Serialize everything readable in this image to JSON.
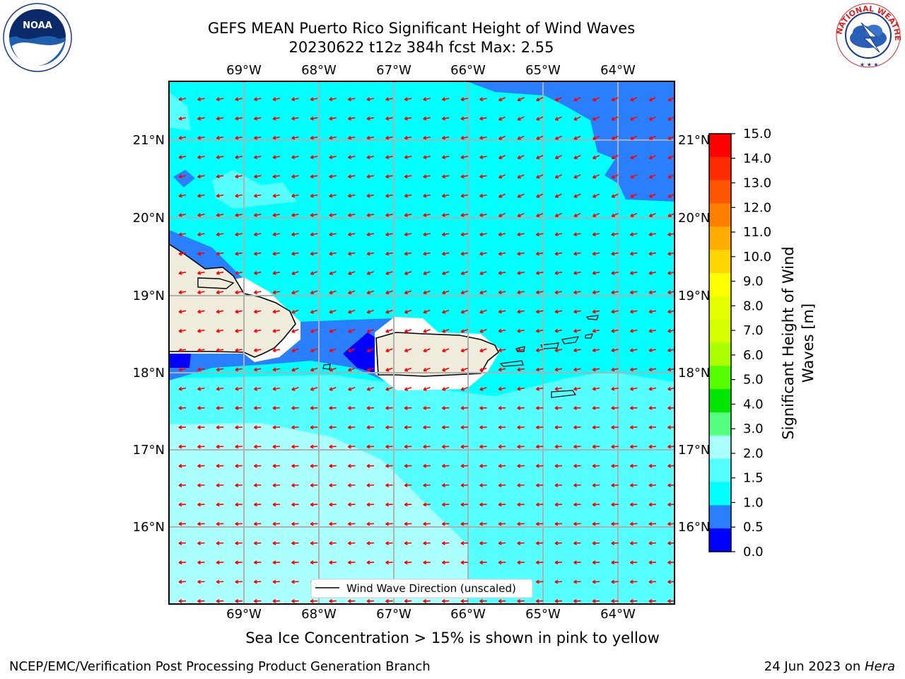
{
  "header": {
    "title_line1": "GEFS MEAN Puerto Rico Significant Height of Wind Waves",
    "title_line2": "20230622 t12z 384h fcst   Max: 2.55"
  },
  "logos": {
    "left": {
      "icon": "noaa-logo",
      "text": "NOAA",
      "ring_text": "NATIONAL OCEANIC AND ATMOSPHERIC ADMINISTRATION · U.S. DEPARTMENT OF COMMERCE"
    },
    "right": {
      "icon": "nws-logo",
      "ring_text": "NATIONAL WEATHER SERVICE"
    }
  },
  "map": {
    "lon_labels": [
      "69°W",
      "68°W",
      "67°W",
      "66°W",
      "65°W",
      "64°W"
    ],
    "lat_labels": [
      "21°N",
      "20°N",
      "19°N",
      "18°N",
      "17°N",
      "16°N"
    ],
    "legend_label": "Wind Wave Direction (unscaled)",
    "arrow_color": "#ff0000",
    "land_color": "#efecdc",
    "grid_color": "#b0b0b0"
  },
  "colorbar": {
    "label": "Significant Height of Wind Waves [m]",
    "label_line1": "Significant Height of Wind",
    "label_line2": "Waves [m]",
    "ticks": [
      "15.0",
      "14.0",
      "13.0",
      "12.0",
      "11.0",
      "10.0",
      "9.0",
      "8.0",
      "7.0",
      "6.0",
      "5.0",
      "4.0",
      "3.0",
      "2.0",
      "1.5",
      "1.0",
      "0.5",
      "0.0"
    ],
    "colors": [
      "#ff0000",
      "#ff2a00",
      "#ff5500",
      "#ff8000",
      "#ffab00",
      "#ffd500",
      "#ffff00",
      "#e6ff00",
      "#d5ff00",
      "#aaff00",
      "#55ff00",
      "#00e600",
      "#55ff7f",
      "#aaffff",
      "#55ffff",
      "#00ffff",
      "#2a7fff",
      "#0000ff"
    ]
  },
  "note": "Sea Ice Concentration > 15% is shown in pink to yellow",
  "footer": {
    "left": "NCEP/EMC/Verification Post Processing Product Generation Branch",
    "right_prefix": "24 Jun 2023 on ",
    "right_host": "Hera"
  }
}
